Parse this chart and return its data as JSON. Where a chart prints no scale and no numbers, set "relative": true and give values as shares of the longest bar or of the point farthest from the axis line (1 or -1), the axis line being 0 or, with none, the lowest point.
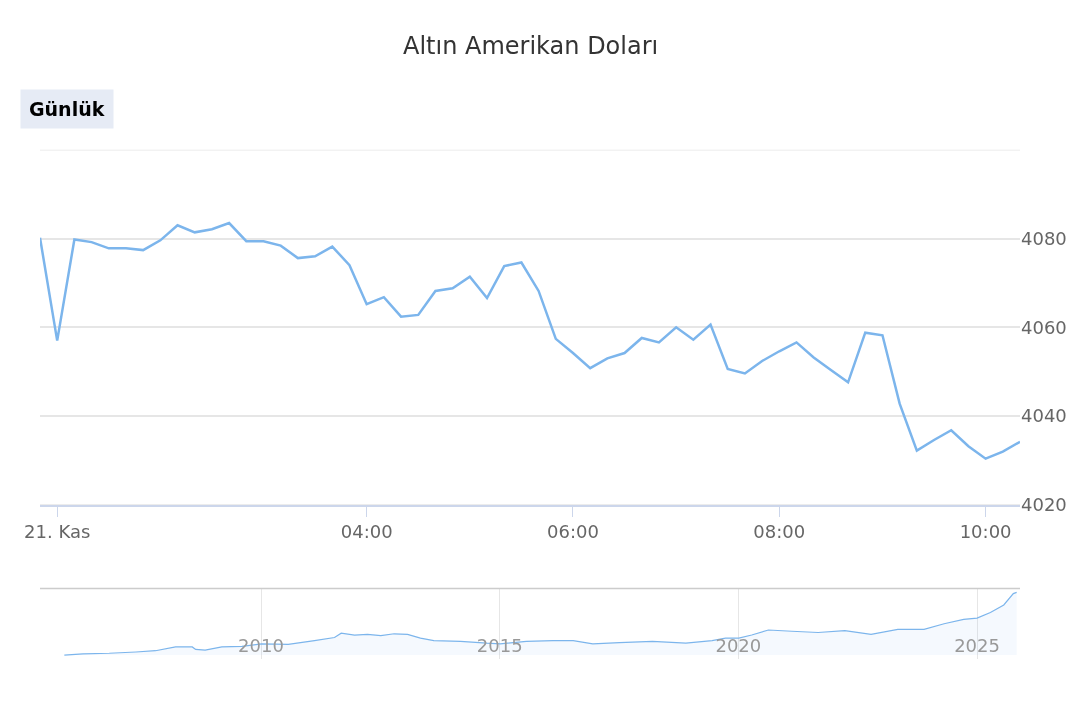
{
  "chart_data": [
    {
      "type": "line",
      "title": "Altın Amerikan Doları",
      "annotations": [
        "Günlük"
      ],
      "x": [
        "--11-21T00:50",
        "--11-21T01:00",
        "--11-21T01:10",
        "--11-21T01:20",
        "--11-21T01:30",
        "--11-21T01:40",
        "--11-21T01:50",
        "--11-21T02:00",
        "--11-21T02:10",
        "--11-21T02:20",
        "--11-21T02:30",
        "--11-21T02:40",
        "--11-21T02:50",
        "--11-21T03:00",
        "--11-21T03:10",
        "--11-21T03:20",
        "--11-21T03:30",
        "--11-21T03:40",
        "--11-21T03:50",
        "--11-21T04:00",
        "--11-21T04:10",
        "--11-21T04:20",
        "--11-21T04:30",
        "--11-21T04:40",
        "--11-21T04:50",
        "--11-21T05:00",
        "--11-21T05:10",
        "--11-21T05:20",
        "--11-21T05:30",
        "--11-21T05:40",
        "--11-21T05:50",
        "--11-21T06:00",
        "--11-21T06:10",
        "--11-21T06:20",
        "--11-21T06:30",
        "--11-21T06:40",
        "--11-21T06:50",
        "--11-21T07:00",
        "--11-21T07:10",
        "--11-21T07:20",
        "--11-21T07:30",
        "--11-21T07:40",
        "--11-21T07:50",
        "--11-21T08:00",
        "--11-21T08:10",
        "--11-21T08:20",
        "--11-21T08:30",
        "--11-21T08:40",
        "--11-21T08:50",
        "--11-21T09:00",
        "--11-21T09:10",
        "--11-21T09:20",
        "--11-21T09:30",
        "--11-21T09:40",
        "--11-21T09:50",
        "--11-21T10:00",
        "--11-21T10:10",
        "--11-21T10:20"
      ],
      "series": [
        {
          "color": "#7cb5ec",
          "values": [
            4080.2,
            4057.0,
            4079.8,
            4079.2,
            4077.8,
            4077.8,
            4077.4,
            4079.6,
            4083.0,
            4081.4,
            4082.1,
            4083.5,
            4079.4,
            4079.4,
            4078.4,
            4075.6,
            4076.0,
            4078.2,
            4074.0,
            4065.2,
            4066.8,
            4062.4,
            4062.8,
            4068.2,
            4068.8,
            4071.4,
            4066.6,
            4073.8,
            4074.6,
            4068.2,
            4057.4,
            4054.2,
            4050.8,
            4053.0,
            4054.2,
            4057.6,
            4056.6,
            4060.0,
            4057.2,
            4060.6,
            4050.6,
            4049.6,
            4052.4,
            4054.6,
            4056.6,
            4053.2,
            4050.4,
            4047.6,
            4058.8,
            4058.2,
            4042.8,
            4032.2,
            4034.6,
            4036.8,
            4033.2,
            4030.4,
            4032.0,
            4034.2
          ]
        }
      ],
      "xlim": [
        "--11-21T00:50",
        "--11-21T10:20"
      ],
      "xticks": [
        {
          "value": "--11-21T01:00",
          "label": "21. Kas"
        },
        {
          "value": "--11-21T04:00",
          "label": "04:00"
        },
        {
          "value": "--11-21T06:00",
          "label": "06:00"
        },
        {
          "value": "--11-21T08:00",
          "label": "08:00"
        },
        {
          "value": "--11-21T10:00",
          "label": "10:00"
        }
      ],
      "ylim": [
        4020,
        4100
      ],
      "yticks": [
        4020,
        4040,
        4060,
        4080,
        {
          "value": 4100,
          "label": null
        }
      ],
      "grid": "y"
    },
    {
      "type": "area",
      "relative": true,
      "x": [
        2005.88,
        2006.27,
        2006.82,
        2007.38,
        2007.79,
        2008.21,
        2008.56,
        2008.63,
        2008.83,
        2009.18,
        2009.6,
        2010.01,
        2010.57,
        2011.12,
        2011.54,
        2011.68,
        2011.96,
        2012.23,
        2012.51,
        2012.79,
        2013.07,
        2013.34,
        2013.62,
        2014.18,
        2014.73,
        2015.01,
        2015.56,
        2016.12,
        2016.54,
        2016.95,
        2017.51,
        2018.2,
        2018.9,
        2019.45,
        2019.73,
        2020.01,
        2020.28,
        2020.63,
        2021.12,
        2021.67,
        2022.23,
        2022.78,
        2023.34,
        2023.89,
        2024.31,
        2024.72,
        2025.0,
        2025.28,
        2025.56,
        2025.76,
        2025.83
      ],
      "series": [
        {
          "color": "#7cb5ec",
          "values": [
            0,
            0.02,
            0.03,
            0.05,
            0.07,
            0.13,
            0.13,
            0.09,
            0.08,
            0.13,
            0.14,
            0.18,
            0.17,
            0.23,
            0.28,
            0.35,
            0.32,
            0.33,
            0.31,
            0.34,
            0.33,
            0.27,
            0.23,
            0.22,
            0.19,
            0.18,
            0.22,
            0.23,
            0.23,
            0.18,
            0.2,
            0.22,
            0.19,
            0.23,
            0.27,
            0.27,
            0.32,
            0.4,
            0.38,
            0.36,
            0.39,
            0.33,
            0.41,
            0.41,
            0.5,
            0.57,
            0.59,
            0.68,
            0.8,
            0.98,
            1.0
          ]
        }
      ],
      "xlim": [
        2005.37,
        2025.9
      ],
      "xticks": [
        2010,
        2015,
        2020,
        2025
      ],
      "grid": "x",
      "tick_labels": "x"
    }
  ]
}
